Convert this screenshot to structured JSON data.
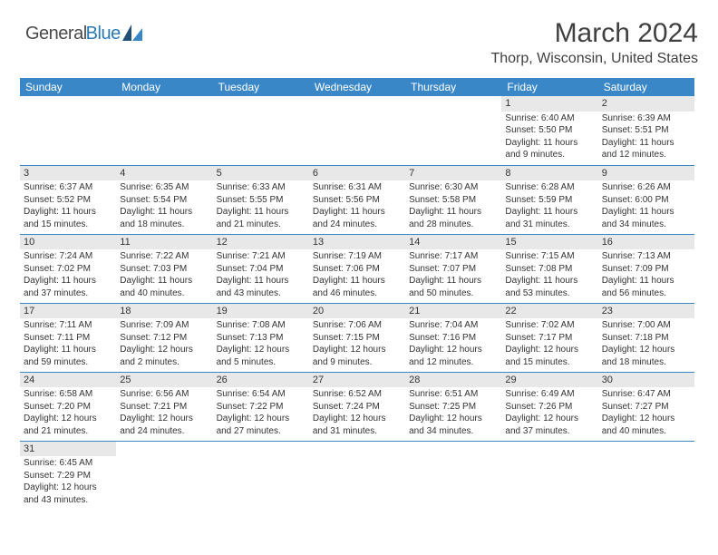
{
  "logo": {
    "part1": "General",
    "part2": "Blue"
  },
  "title": "March 2024",
  "location": "Thorp, Wisconsin, United States",
  "colors": {
    "header_bg": "#3a87c7",
    "header_text": "#ffffff",
    "daynum_bg": "#e8e8e8",
    "rule": "#3a87c7",
    "logo_blue": "#2b7ab8",
    "title_color": "#404040"
  },
  "dayHeaders": [
    "Sunday",
    "Monday",
    "Tuesday",
    "Wednesday",
    "Thursday",
    "Friday",
    "Saturday"
  ],
  "weeks": [
    [
      null,
      null,
      null,
      null,
      null,
      {
        "n": "1",
        "sunrise": "Sunrise: 6:40 AM",
        "sunset": "Sunset: 5:50 PM",
        "day1": "Daylight: 11 hours",
        "day2": "and 9 minutes."
      },
      {
        "n": "2",
        "sunrise": "Sunrise: 6:39 AM",
        "sunset": "Sunset: 5:51 PM",
        "day1": "Daylight: 11 hours",
        "day2": "and 12 minutes."
      }
    ],
    [
      {
        "n": "3",
        "sunrise": "Sunrise: 6:37 AM",
        "sunset": "Sunset: 5:52 PM",
        "day1": "Daylight: 11 hours",
        "day2": "and 15 minutes."
      },
      {
        "n": "4",
        "sunrise": "Sunrise: 6:35 AM",
        "sunset": "Sunset: 5:54 PM",
        "day1": "Daylight: 11 hours",
        "day2": "and 18 minutes."
      },
      {
        "n": "5",
        "sunrise": "Sunrise: 6:33 AM",
        "sunset": "Sunset: 5:55 PM",
        "day1": "Daylight: 11 hours",
        "day2": "and 21 minutes."
      },
      {
        "n": "6",
        "sunrise": "Sunrise: 6:31 AM",
        "sunset": "Sunset: 5:56 PM",
        "day1": "Daylight: 11 hours",
        "day2": "and 24 minutes."
      },
      {
        "n": "7",
        "sunrise": "Sunrise: 6:30 AM",
        "sunset": "Sunset: 5:58 PM",
        "day1": "Daylight: 11 hours",
        "day2": "and 28 minutes."
      },
      {
        "n": "8",
        "sunrise": "Sunrise: 6:28 AM",
        "sunset": "Sunset: 5:59 PM",
        "day1": "Daylight: 11 hours",
        "day2": "and 31 minutes."
      },
      {
        "n": "9",
        "sunrise": "Sunrise: 6:26 AM",
        "sunset": "Sunset: 6:00 PM",
        "day1": "Daylight: 11 hours",
        "day2": "and 34 minutes."
      }
    ],
    [
      {
        "n": "10",
        "sunrise": "Sunrise: 7:24 AM",
        "sunset": "Sunset: 7:02 PM",
        "day1": "Daylight: 11 hours",
        "day2": "and 37 minutes."
      },
      {
        "n": "11",
        "sunrise": "Sunrise: 7:22 AM",
        "sunset": "Sunset: 7:03 PM",
        "day1": "Daylight: 11 hours",
        "day2": "and 40 minutes."
      },
      {
        "n": "12",
        "sunrise": "Sunrise: 7:21 AM",
        "sunset": "Sunset: 7:04 PM",
        "day1": "Daylight: 11 hours",
        "day2": "and 43 minutes."
      },
      {
        "n": "13",
        "sunrise": "Sunrise: 7:19 AM",
        "sunset": "Sunset: 7:06 PM",
        "day1": "Daylight: 11 hours",
        "day2": "and 46 minutes."
      },
      {
        "n": "14",
        "sunrise": "Sunrise: 7:17 AM",
        "sunset": "Sunset: 7:07 PM",
        "day1": "Daylight: 11 hours",
        "day2": "and 50 minutes."
      },
      {
        "n": "15",
        "sunrise": "Sunrise: 7:15 AM",
        "sunset": "Sunset: 7:08 PM",
        "day1": "Daylight: 11 hours",
        "day2": "and 53 minutes."
      },
      {
        "n": "16",
        "sunrise": "Sunrise: 7:13 AM",
        "sunset": "Sunset: 7:09 PM",
        "day1": "Daylight: 11 hours",
        "day2": "and 56 minutes."
      }
    ],
    [
      {
        "n": "17",
        "sunrise": "Sunrise: 7:11 AM",
        "sunset": "Sunset: 7:11 PM",
        "day1": "Daylight: 11 hours",
        "day2": "and 59 minutes."
      },
      {
        "n": "18",
        "sunrise": "Sunrise: 7:09 AM",
        "sunset": "Sunset: 7:12 PM",
        "day1": "Daylight: 12 hours",
        "day2": "and 2 minutes."
      },
      {
        "n": "19",
        "sunrise": "Sunrise: 7:08 AM",
        "sunset": "Sunset: 7:13 PM",
        "day1": "Daylight: 12 hours",
        "day2": "and 5 minutes."
      },
      {
        "n": "20",
        "sunrise": "Sunrise: 7:06 AM",
        "sunset": "Sunset: 7:15 PM",
        "day1": "Daylight: 12 hours",
        "day2": "and 9 minutes."
      },
      {
        "n": "21",
        "sunrise": "Sunrise: 7:04 AM",
        "sunset": "Sunset: 7:16 PM",
        "day1": "Daylight: 12 hours",
        "day2": "and 12 minutes."
      },
      {
        "n": "22",
        "sunrise": "Sunrise: 7:02 AM",
        "sunset": "Sunset: 7:17 PM",
        "day1": "Daylight: 12 hours",
        "day2": "and 15 minutes."
      },
      {
        "n": "23",
        "sunrise": "Sunrise: 7:00 AM",
        "sunset": "Sunset: 7:18 PM",
        "day1": "Daylight: 12 hours",
        "day2": "and 18 minutes."
      }
    ],
    [
      {
        "n": "24",
        "sunrise": "Sunrise: 6:58 AM",
        "sunset": "Sunset: 7:20 PM",
        "day1": "Daylight: 12 hours",
        "day2": "and 21 minutes."
      },
      {
        "n": "25",
        "sunrise": "Sunrise: 6:56 AM",
        "sunset": "Sunset: 7:21 PM",
        "day1": "Daylight: 12 hours",
        "day2": "and 24 minutes."
      },
      {
        "n": "26",
        "sunrise": "Sunrise: 6:54 AM",
        "sunset": "Sunset: 7:22 PM",
        "day1": "Daylight: 12 hours",
        "day2": "and 27 minutes."
      },
      {
        "n": "27",
        "sunrise": "Sunrise: 6:52 AM",
        "sunset": "Sunset: 7:24 PM",
        "day1": "Daylight: 12 hours",
        "day2": "and 31 minutes."
      },
      {
        "n": "28",
        "sunrise": "Sunrise: 6:51 AM",
        "sunset": "Sunset: 7:25 PM",
        "day1": "Daylight: 12 hours",
        "day2": "and 34 minutes."
      },
      {
        "n": "29",
        "sunrise": "Sunrise: 6:49 AM",
        "sunset": "Sunset: 7:26 PM",
        "day1": "Daylight: 12 hours",
        "day2": "and 37 minutes."
      },
      {
        "n": "30",
        "sunrise": "Sunrise: 6:47 AM",
        "sunset": "Sunset: 7:27 PM",
        "day1": "Daylight: 12 hours",
        "day2": "and 40 minutes."
      }
    ],
    [
      {
        "n": "31",
        "sunrise": "Sunrise: 6:45 AM",
        "sunset": "Sunset: 7:29 PM",
        "day1": "Daylight: 12 hours",
        "day2": "and 43 minutes."
      },
      null,
      null,
      null,
      null,
      null,
      null
    ]
  ]
}
